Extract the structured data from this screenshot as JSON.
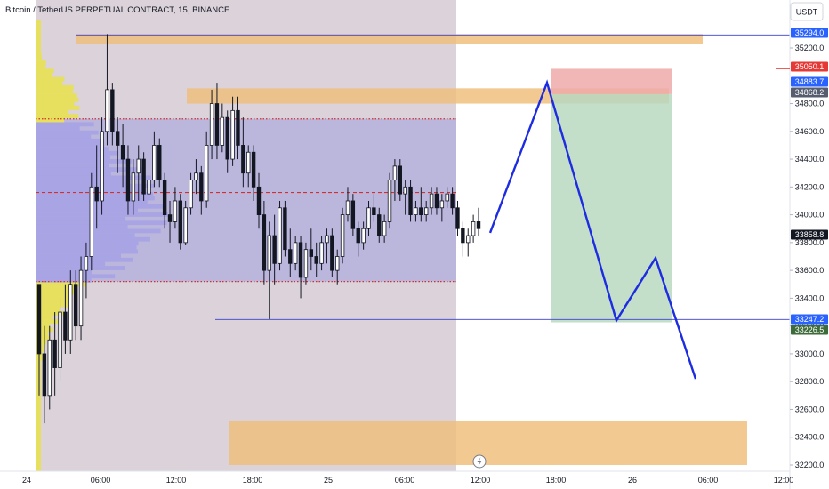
{
  "header": {
    "title": "Bitcoin / TetherUS PERPETUAL CONTRACT, 15, BINANCE",
    "currency_button": "USDT"
  },
  "colors": {
    "candle": "#131722",
    "volume_profile_outer": "#e6e05e",
    "volume_profile_value_area": "#a7a3e6",
    "value_area_fill": "#b0acdc",
    "session_shade": "#d7cdd6",
    "zone": "#eebf7e",
    "line": "#3a3fd0",
    "profit": "#b8d8c0",
    "loss": "#eeaaaa",
    "poc": "#d42f2f"
  },
  "chart_data": {
    "type": "candlestick",
    "y_axis": {
      "ticks": [
        "35200.0",
        "34800.0",
        "34600.0",
        "34400.0",
        "34200.0",
        "34000.0",
        "33800.0",
        "33600.0",
        "33400.0",
        "33200.0",
        "33000.0",
        "32800.0",
        "32600.0",
        "32400.0",
        "32200.0"
      ],
      "range": [
        32180,
        35380
      ]
    },
    "x_axis": {
      "ticks": [
        "24",
        "06:00",
        "12:00",
        "18:00",
        "25",
        "06:00",
        "12:00",
        "18:00",
        "26",
        "06:00",
        "12:00"
      ]
    },
    "price_labels": [
      {
        "text": "35294.0",
        "value": 35294.0,
        "bg": "#2962ff",
        "fg": "#ffffff"
      },
      {
        "text": "35050.1",
        "value": 35050.1,
        "bg": "#e53935",
        "fg": "#ffffff"
      },
      {
        "text": "34883.7",
        "value": 34883.7,
        "bg": "#2962ff",
        "fg": "#ffffff"
      },
      {
        "text": "34868.2",
        "value": 34868.2,
        "bg": "#555d6e",
        "fg": "#ffffff"
      },
      {
        "text": "33858.8",
        "value": 33858.8,
        "bg": "#131722",
        "fg": "#ffffff"
      },
      {
        "text": "33247.2",
        "value": 33247.2,
        "bg": "#2962ff",
        "fg": "#ffffff"
      },
      {
        "text": "33226.5",
        "value": 33226.5,
        "bg": "#3e6b3a",
        "fg": "#ffffff"
      }
    ],
    "value_area": {
      "high": 34690,
      "low": 33520,
      "poc": 34160
    },
    "zones": [
      {
        "top": 35300,
        "bottom": 35230
      },
      {
        "top": 34910,
        "bottom": 34800
      },
      {
        "top": 32520,
        "bottom": 32200
      }
    ],
    "horizontal_lines": [
      35294.0,
      34883.7,
      33247.2
    ],
    "position": {
      "entry": 34868.2,
      "stop": 35050.1,
      "target": 33226.5
    },
    "projection": [
      33870,
      34950,
      33240,
      33690,
      32820
    ],
    "candles": [
      [
        33500,
        33500,
        32700,
        33000
      ],
      [
        33000,
        33200,
        32500,
        32700
      ],
      [
        32700,
        33200,
        32600,
        33100
      ],
      [
        33100,
        33300,
        32700,
        32900
      ],
      [
        32900,
        33400,
        32800,
        33300
      ],
      [
        33300,
        33500,
        33000,
        33100
      ],
      [
        33100,
        33600,
        33000,
        33500
      ],
      [
        33500,
        33600,
        33100,
        33200
      ],
      [
        33200,
        33700,
        33100,
        33600
      ],
      [
        33600,
        33800,
        33400,
        33700
      ],
      [
        33700,
        34300,
        33600,
        34200
      ],
      [
        34200,
        34500,
        33900,
        34100
      ],
      [
        34100,
        34700,
        34000,
        34600
      ],
      [
        34600,
        35300,
        34500,
        34900
      ],
      [
        34900,
        34950,
        34500,
        34600
      ],
      [
        34600,
        34700,
        34300,
        34500
      ],
      [
        34500,
        34650,
        34200,
        34400
      ],
      [
        34400,
        34500,
        34000,
        34100
      ],
      [
        34100,
        34400,
        34000,
        34300
      ],
      [
        34300,
        34500,
        34100,
        34400
      ],
      [
        34400,
        34450,
        34100,
        34150
      ],
      [
        34150,
        34300,
        33950,
        34250
      ],
      [
        34250,
        34600,
        34200,
        34500
      ],
      [
        34500,
        34550,
        34200,
        34250
      ],
      [
        34250,
        34300,
        33900,
        34000
      ],
      [
        34000,
        34100,
        33800,
        33950
      ],
      [
        33950,
        34200,
        33900,
        34100
      ],
      [
        34100,
        34150,
        33750,
        33800
      ],
      [
        33800,
        34100,
        33780,
        34050
      ],
      [
        34050,
        34300,
        34000,
        34250
      ],
      [
        34250,
        34400,
        34150,
        34300
      ],
      [
        34300,
        34350,
        34000,
        34100
      ],
      [
        34100,
        34600,
        34050,
        34500
      ],
      [
        34500,
        34900,
        34400,
        34800
      ],
      [
        34800,
        34950,
        34400,
        34500
      ],
      [
        34500,
        34800,
        34450,
        34700
      ],
      [
        34700,
        34750,
        34300,
        34400
      ],
      [
        34400,
        34850,
        34350,
        34750
      ],
      [
        34750,
        34850,
        34400,
        34500
      ],
      [
        34500,
        34700,
        34200,
        34300
      ],
      [
        34300,
        34500,
        34200,
        34450
      ],
      [
        34450,
        34500,
        34100,
        34200
      ],
      [
        34200,
        34300,
        33900,
        34000
      ],
      [
        34000,
        34100,
        33500,
        33600
      ],
      [
        33600,
        33950,
        33250,
        33850
      ],
      [
        33850,
        34000,
        33500,
        33650
      ],
      [
        33650,
        34100,
        33600,
        34050
      ],
      [
        34050,
        34100,
        33700,
        33750
      ],
      [
        33750,
        33900,
        33550,
        33650
      ],
      [
        33650,
        33850,
        33600,
        33800
      ],
      [
        33800,
        33850,
        33400,
        33550
      ],
      [
        33550,
        33800,
        33500,
        33750
      ],
      [
        33750,
        33900,
        33600,
        33700
      ],
      [
        33700,
        33800,
        33550,
        33650
      ],
      [
        33650,
        33850,
        33600,
        33800
      ],
      [
        33800,
        33900,
        33650,
        33850
      ],
      [
        33850,
        33900,
        33550,
        33600
      ],
      [
        33600,
        33750,
        33500,
        33700
      ],
      [
        33700,
        34050,
        33650,
        34000
      ],
      [
        34000,
        34200,
        33950,
        34100
      ],
      [
        34100,
        34150,
        33850,
        33900
      ],
      [
        33900,
        33950,
        33700,
        33800
      ],
      [
        33800,
        33950,
        33750,
        33900
      ],
      [
        33900,
        34100,
        33850,
        34050
      ],
      [
        34050,
        34150,
        33950,
        34000
      ],
      [
        34000,
        34050,
        33800,
        33850
      ],
      [
        33850,
        34000,
        33800,
        33950
      ],
      [
        33950,
        34300,
        33900,
        34250
      ],
      [
        34250,
        34400,
        34100,
        34350
      ],
      [
        34350,
        34400,
        34100,
        34150
      ],
      [
        34150,
        34250,
        34000,
        34200
      ],
      [
        34200,
        34250,
        33950,
        34000
      ],
      [
        34000,
        34100,
        33950,
        34050
      ],
      [
        34050,
        34200,
        33950,
        34000
      ],
      [
        34000,
        34100,
        33950,
        34050
      ],
      [
        34050,
        34200,
        34000,
        34150
      ],
      [
        34150,
        34200,
        34000,
        34050
      ],
      [
        34050,
        34150,
        33950,
        34100
      ],
      [
        34100,
        34200,
        34050,
        34150
      ],
      [
        34150,
        34200,
        34000,
        34050
      ],
      [
        34050,
        34100,
        33850,
        33900
      ],
      [
        33900,
        33950,
        33700,
        33800
      ],
      [
        33800,
        33900,
        33700,
        33850
      ],
      [
        33850,
        34000,
        33800,
        33950
      ],
      [
        33950,
        34050,
        33850,
        33900
      ]
    ]
  }
}
